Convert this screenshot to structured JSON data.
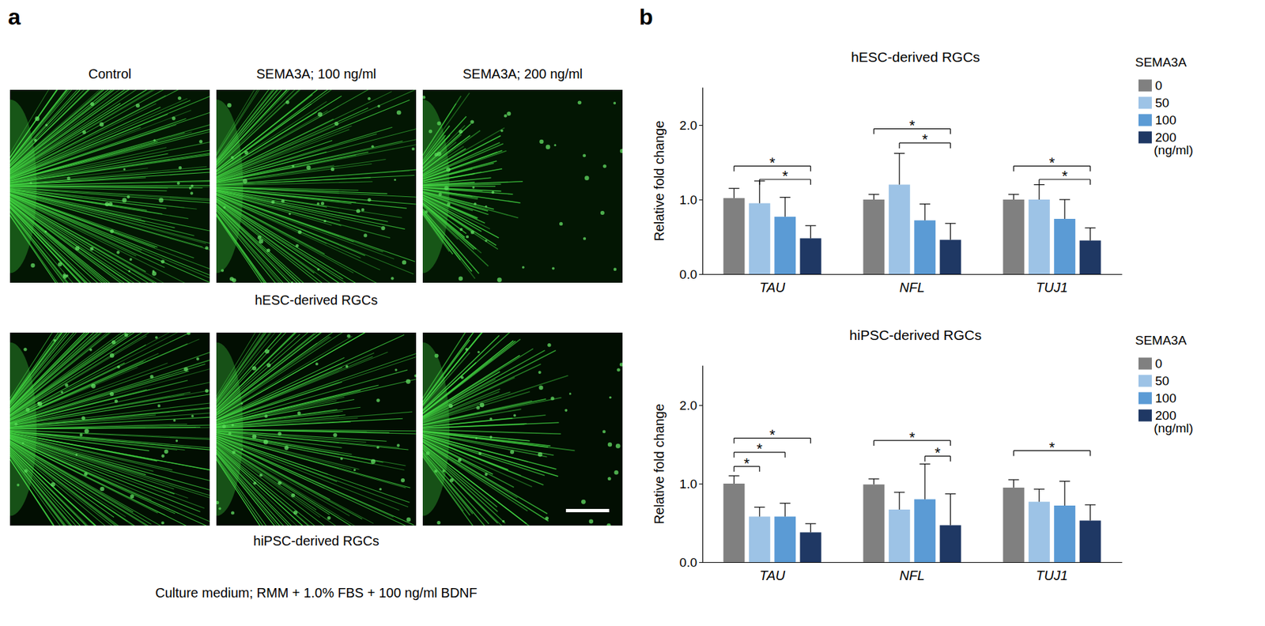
{
  "panel_letters": [
    "a",
    "b"
  ],
  "panel_a": {
    "columns": [
      "Control",
      "SEMA3A; 100 ng/ml",
      "SEMA3A; 200 ng/ml"
    ],
    "rows": [
      "hESC-derived RGCs",
      "hiPSC-derived RGCs"
    ],
    "caption": "Culture medium; RMM + 1.0% FBS + 100 ng/ml BDNF"
  },
  "chart_data": [
    {
      "type": "bar",
      "title": "hESC-derived RGCs",
      "y_label": "Relative fold change",
      "categories": [
        "TAU",
        "NFL",
        "TUJ1"
      ],
      "legend": "right",
      "legend_title": "SEMA3A",
      "legend_unit": "(ng/ml)",
      "grid": false,
      "ylim": [
        0,
        2.5
      ],
      "yticks": [
        {
          "value": 0,
          "label": "0.0"
        },
        {
          "value": 1,
          "label": "1.0"
        },
        {
          "value": 2,
          "label": "2.0"
        }
      ],
      "series": [
        {
          "name": "0",
          "color": "#808080",
          "values": [
            1.02,
            1.0,
            1.0
          ],
          "errors": [
            0.13,
            0.07,
            0.07
          ]
        },
        {
          "name": "50",
          "color": "#9dc3e6",
          "values": [
            0.95,
            1.2,
            1.0
          ],
          "errors": [
            0.3,
            0.42,
            0.2
          ]
        },
        {
          "name": "100",
          "color": "#5b9bd5",
          "values": [
            0.77,
            0.72,
            0.74
          ],
          "errors": [
            0.26,
            0.22,
            0.26
          ]
        },
        {
          "name": "200",
          "color": "#1f3864",
          "values": [
            0.48,
            0.46,
            0.45
          ],
          "errors": [
            0.17,
            0.22,
            0.17
          ]
        }
      ],
      "significance": [
        {
          "category": "TAU",
          "from": "0",
          "to": "200",
          "y": 1.45,
          "label": "*"
        },
        {
          "category": "TAU",
          "from": "50",
          "to": "200",
          "y": 1.27,
          "label": "*"
        },
        {
          "category": "NFL",
          "from": "0",
          "to": "200",
          "y": 1.95,
          "label": "*"
        },
        {
          "category": "NFL",
          "from": "50",
          "to": "200",
          "y": 1.76,
          "label": "*"
        },
        {
          "category": "TUJ1",
          "from": "0",
          "to": "200",
          "y": 1.45,
          "label": "*"
        },
        {
          "category": "TUJ1",
          "from": "50",
          "to": "200",
          "y": 1.27,
          "label": "*"
        }
      ]
    },
    {
      "type": "bar",
      "title": "hiPSC-derived RGCs",
      "y_label": "Relative fold change",
      "categories": [
        "TAU",
        "NFL",
        "TUJ1"
      ],
      "legend": "right",
      "legend_title": "SEMA3A",
      "legend_unit": "(ng/ml)",
      "grid": false,
      "ylim": [
        0,
        2.5
      ],
      "yticks": [
        {
          "value": 0,
          "label": "0.0"
        },
        {
          "value": 1,
          "label": "1.0"
        },
        {
          "value": 2,
          "label": "2.0"
        }
      ],
      "series": [
        {
          "name": "0",
          "color": "#808080",
          "values": [
            1.0,
            0.99,
            0.95
          ],
          "errors": [
            0.1,
            0.07,
            0.1
          ]
        },
        {
          "name": "50",
          "color": "#9dc3e6",
          "values": [
            0.58,
            0.67,
            0.77
          ],
          "errors": [
            0.12,
            0.22,
            0.16
          ]
        },
        {
          "name": "100",
          "color": "#5b9bd5",
          "values": [
            0.58,
            0.8,
            0.72
          ],
          "errors": [
            0.17,
            0.45,
            0.31
          ]
        },
        {
          "name": "200",
          "color": "#1f3864",
          "values": [
            0.38,
            0.47,
            0.53
          ],
          "errors": [
            0.11,
            0.4,
            0.2
          ]
        }
      ],
      "significance": [
        {
          "category": "TAU",
          "from": "0",
          "to": "50",
          "y": 1.22,
          "label": "*"
        },
        {
          "category": "TAU",
          "from": "0",
          "to": "100",
          "y": 1.4,
          "label": "*"
        },
        {
          "category": "TAU",
          "from": "0",
          "to": "200",
          "y": 1.58,
          "label": "*"
        },
        {
          "category": "NFL",
          "from": "0",
          "to": "200",
          "y": 1.55,
          "label": "*"
        },
        {
          "category": "NFL",
          "from": "100",
          "to": "200",
          "y": 1.35,
          "label": "*"
        },
        {
          "category": "TUJ1",
          "from": "0",
          "to": "200",
          "y": 1.42,
          "label": "*"
        }
      ]
    }
  ]
}
